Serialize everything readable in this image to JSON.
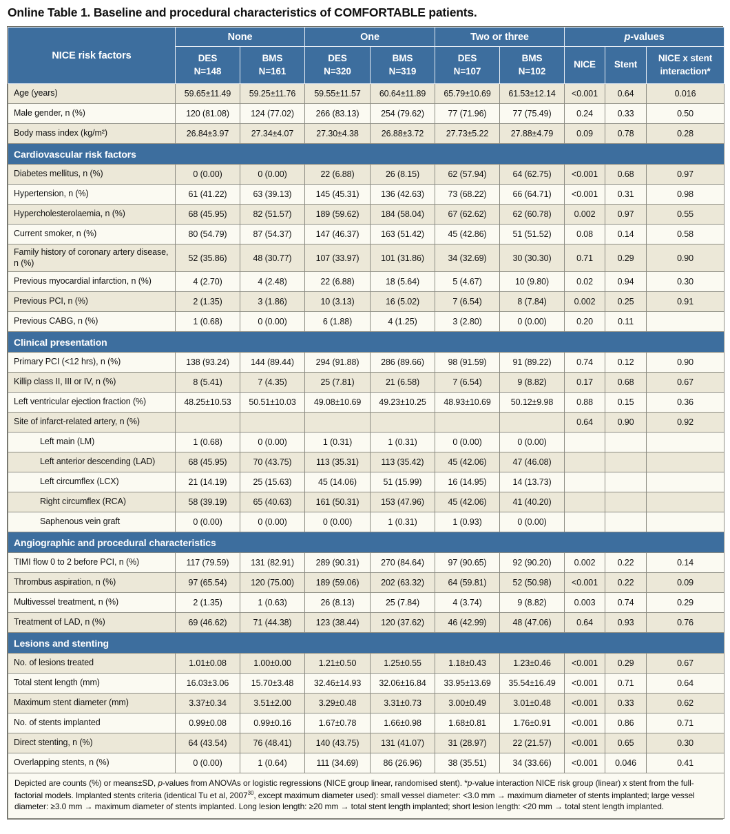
{
  "title": "Online Table 1. Baseline and procedural characteristics of COMFORTABLE patients.",
  "colors": {
    "header_blue": "#3d6e9e",
    "row_beige": "#ece8d8",
    "row_white": "#fbfaf2",
    "border_gray": "#8b8b82"
  },
  "table": {
    "corner_label": "NICE risk factors",
    "groups": [
      {
        "label": "None"
      },
      {
        "label": "One"
      },
      {
        "label": "Two or three"
      },
      {
        "label_italic": "p",
        "label_rest": "-values"
      }
    ],
    "columns": [
      {
        "name": "DES",
        "n": "N=148"
      },
      {
        "name": "BMS",
        "n": "N=161"
      },
      {
        "name": "DES",
        "n": "N=320"
      },
      {
        "name": "BMS",
        "n": "N=319"
      },
      {
        "name": "DES",
        "n": "N=107"
      },
      {
        "name": "BMS",
        "n": "N=102"
      }
    ],
    "p_columns": [
      "NICE",
      "Stent",
      "NICE x stent interaction*"
    ],
    "rows": [
      {
        "type": "data",
        "label": "Age (years)",
        "indent": false,
        "values": [
          "59.65±11.49",
          "59.25±11.76",
          "59.55±11.57",
          "60.64±11.89",
          "65.79±10.69",
          "61.53±12.14",
          "<0.001",
          "0.64",
          "0.016"
        ]
      },
      {
        "type": "data",
        "label": "Male gender, n (%)",
        "indent": false,
        "values": [
          "120 (81.08)",
          "124 (77.02)",
          "266 (83.13)",
          "254 (79.62)",
          "77 (71.96)",
          "77 (75.49)",
          "0.24",
          "0.33",
          "0.50"
        ]
      },
      {
        "type": "data",
        "label": "Body mass index (kg/m²)",
        "indent": false,
        "values": [
          "26.84±3.97",
          "27.34±4.07",
          "27.30±4.38",
          "26.88±3.72",
          "27.73±5.22",
          "27.88±4.79",
          "0.09",
          "0.78",
          "0.28"
        ]
      },
      {
        "type": "section",
        "label": "Cardiovascular risk factors"
      },
      {
        "type": "data",
        "label": "Diabetes mellitus, n (%)",
        "indent": false,
        "values": [
          "0 (0.00)",
          "0 (0.00)",
          "22 (6.88)",
          "26 (8.15)",
          "62 (57.94)",
          "64 (62.75)",
          "<0.001",
          "0.68",
          "0.97"
        ]
      },
      {
        "type": "data",
        "label": "Hypertension, n (%)",
        "indent": false,
        "values": [
          "61 (41.22)",
          "63 (39.13)",
          "145 (45.31)",
          "136 (42.63)",
          "73 (68.22)",
          "66 (64.71)",
          "<0.001",
          "0.31",
          "0.98"
        ]
      },
      {
        "type": "data",
        "label": "Hypercholesterolaemia, n (%)",
        "indent": false,
        "values": [
          "68 (45.95)",
          "82 (51.57)",
          "189 (59.62)",
          "184 (58.04)",
          "67 (62.62)",
          "62 (60.78)",
          "0.002",
          "0.97",
          "0.55"
        ]
      },
      {
        "type": "data",
        "label": "Current smoker, n (%)",
        "indent": false,
        "values": [
          "80 (54.79)",
          "87 (54.37)",
          "147 (46.37)",
          "163 (51.42)",
          "45 (42.86)",
          "51 (51.52)",
          "0.08",
          "0.14",
          "0.58"
        ]
      },
      {
        "type": "data",
        "label": "Family history of coronary artery disease, n (%)",
        "indent": false,
        "values": [
          "52 (35.86)",
          "48 (30.77)",
          "107 (33.97)",
          "101 (31.86)",
          "34 (32.69)",
          "30 (30.30)",
          "0.71",
          "0.29",
          "0.90"
        ]
      },
      {
        "type": "data",
        "label": "Previous myocardial infarction, n (%)",
        "indent": false,
        "values": [
          "4 (2.70)",
          "4 (2.48)",
          "22 (6.88)",
          "18 (5.64)",
          "5 (4.67)",
          "10 (9.80)",
          "0.02",
          "0.94",
          "0.30"
        ]
      },
      {
        "type": "data",
        "label": "Previous PCI, n (%)",
        "indent": false,
        "values": [
          "2 (1.35)",
          "3 (1.86)",
          "10 (3.13)",
          "16 (5.02)",
          "7 (6.54)",
          "8 (7.84)",
          "0.002",
          "0.25",
          "0.91"
        ]
      },
      {
        "type": "data",
        "label": "Previous CABG, n (%)",
        "indent": false,
        "values": [
          "1 (0.68)",
          "0 (0.00)",
          "6 (1.88)",
          "4 (1.25)",
          "3 (2.80)",
          "0 (0.00)",
          "0.20",
          "0.11",
          ""
        ]
      },
      {
        "type": "section",
        "label": "Clinical presentation"
      },
      {
        "type": "data",
        "label": "Primary PCI (<12 hrs), n (%)",
        "indent": false,
        "values": [
          "138 (93.24)",
          "144 (89.44)",
          "294 (91.88)",
          "286 (89.66)",
          "98 (91.59)",
          "91 (89.22)",
          "0.74",
          "0.12",
          "0.90"
        ]
      },
      {
        "type": "data",
        "label": "Killip class II, III or IV, n (%)",
        "indent": false,
        "values": [
          "8 (5.41)",
          "7 (4.35)",
          "25 (7.81)",
          "21 (6.58)",
          "7 (6.54)",
          "9 (8.82)",
          "0.17",
          "0.68",
          "0.67"
        ]
      },
      {
        "type": "data",
        "label": "Left ventricular ejection fraction (%)",
        "indent": false,
        "values": [
          "48.25±10.53",
          "50.51±10.03",
          "49.08±10.69",
          "49.23±10.25",
          "48.93±10.69",
          "50.12±9.98",
          "0.88",
          "0.15",
          "0.36"
        ]
      },
      {
        "type": "data",
        "label": "Site of infarct-related artery, n (%)",
        "indent": false,
        "values": [
          "",
          "",
          "",
          "",
          "",
          "",
          "0.64",
          "0.90",
          "0.92"
        ]
      },
      {
        "type": "data",
        "label": "Left main (LM)",
        "indent": true,
        "values": [
          "1 (0.68)",
          "0 (0.00)",
          "1 (0.31)",
          "1 (0.31)",
          "0 (0.00)",
          "0 (0.00)",
          "",
          "",
          ""
        ]
      },
      {
        "type": "data",
        "label": "Left anterior descending (LAD)",
        "indent": true,
        "values": [
          "68 (45.95)",
          "70 (43.75)",
          "113 (35.31)",
          "113 (35.42)",
          "45 (42.06)",
          "47 (46.08)",
          "",
          "",
          ""
        ]
      },
      {
        "type": "data",
        "label": "Left circumflex (LCX)",
        "indent": true,
        "values": [
          "21 (14.19)",
          "25 (15.63)",
          "45 (14.06)",
          "51 (15.99)",
          "16 (14.95)",
          "14 (13.73)",
          "",
          "",
          ""
        ]
      },
      {
        "type": "data",
        "label": "Right circumflex (RCA)",
        "indent": true,
        "values": [
          "58 (39.19)",
          "65 (40.63)",
          "161 (50.31)",
          "153 (47.96)",
          "45 (42.06)",
          "41 (40.20)",
          "",
          "",
          ""
        ]
      },
      {
        "type": "data",
        "label": "Saphenous vein graft",
        "indent": true,
        "values": [
          "0 (0.00)",
          "0 (0.00)",
          "0 (0.00)",
          "1 (0.31)",
          "1 (0.93)",
          "0 (0.00)",
          "",
          "",
          ""
        ]
      },
      {
        "type": "section",
        "label": "Angiographic and procedural characteristics"
      },
      {
        "type": "data",
        "label": "TIMI flow 0 to 2 before PCI, n (%)",
        "indent": false,
        "values": [
          "117 (79.59)",
          "131 (82.91)",
          "289 (90.31)",
          "270 (84.64)",
          "97 (90.65)",
          "92 (90.20)",
          "0.002",
          "0.22",
          "0.14"
        ]
      },
      {
        "type": "data",
        "label": "Thrombus aspiration, n (%)",
        "indent": false,
        "values": [
          "97 (65.54)",
          "120 (75.00)",
          "189 (59.06)",
          "202 (63.32)",
          "64 (59.81)",
          "52 (50.98)",
          "<0.001",
          "0.22",
          "0.09"
        ]
      },
      {
        "type": "data",
        "label": "Multivessel treatment, n (%)",
        "indent": false,
        "values": [
          "2 (1.35)",
          "1 (0.63)",
          "26 (8.13)",
          "25 (7.84)",
          "4 (3.74)",
          "9 (8.82)",
          "0.003",
          "0.74",
          "0.29"
        ]
      },
      {
        "type": "data",
        "label": "Treatment of LAD, n (%)",
        "indent": false,
        "values": [
          "69 (46.62)",
          "71 (44.38)",
          "123 (38.44)",
          "120 (37.62)",
          "46 (42.99)",
          "48 (47.06)",
          "0.64",
          "0.93",
          "0.76"
        ]
      },
      {
        "type": "section",
        "label": "Lesions and stenting"
      },
      {
        "type": "data",
        "label": "No. of lesions treated",
        "indent": false,
        "values": [
          "1.01±0.08",
          "1.00±0.00",
          "1.21±0.50",
          "1.25±0.55",
          "1.18±0.43",
          "1.23±0.46",
          "<0.001",
          "0.29",
          "0.67"
        ]
      },
      {
        "type": "data",
        "label": "Total stent length (mm)",
        "indent": false,
        "values": [
          "16.03±3.06",
          "15.70±3.48",
          "32.46±14.93",
          "32.06±16.84",
          "33.95±13.69",
          "35.54±16.49",
          "<0.001",
          "0.71",
          "0.64"
        ]
      },
      {
        "type": "data",
        "label": "Maximum stent diameter (mm)",
        "indent": false,
        "values": [
          "3.37±0.34",
          "3.51±2.00",
          "3.29±0.48",
          "3.31±0.73",
          "3.00±0.49",
          "3.01±0.48",
          "<0.001",
          "0.33",
          "0.62"
        ]
      },
      {
        "type": "data",
        "label": "No. of stents implanted",
        "indent": false,
        "values": [
          "0.99±0.08",
          "0.99±0.16",
          "1.67±0.78",
          "1.66±0.98",
          "1.68±0.81",
          "1.76±0.91",
          "<0.001",
          "0.86",
          "0.71"
        ]
      },
      {
        "type": "data",
        "label": "Direct stenting, n (%)",
        "indent": false,
        "values": [
          "64 (43.54)",
          "76 (48.41)",
          "140 (43.75)",
          "131 (41.07)",
          "31 (28.97)",
          "22 (21.57)",
          "<0.001",
          "0.65",
          "0.30"
        ]
      },
      {
        "type": "data",
        "label": "Overlapping stents, n (%)",
        "indent": false,
        "values": [
          "0 (0.00)",
          "1 (0.64)",
          "111 (34.69)",
          "86 (26.96)",
          "38 (35.51)",
          "34 (33.66)",
          "<0.001",
          "0.046",
          "0.41"
        ]
      }
    ],
    "footnote_segments": [
      {
        "t": "Depicted are counts (%) or means±SD, "
      },
      {
        "t": "p",
        "i": true
      },
      {
        "t": "-values from ANOVAs or logistic regressions (NICE group linear, randomised stent). *"
      },
      {
        "t": "p",
        "i": true
      },
      {
        "t": "-value interaction NICE risk group (linear) x stent from the full-factorial models. Implanted stents criteria (identical Tu et al, 2007"
      },
      {
        "t": "30",
        "sup": true
      },
      {
        "t": ", except maximum diameter used): small vessel diameter: <3.0 mm → maximum diameter of stents implanted; large vessel diameter: ≥3.0 mm → maximum diameter of stents implanted. Long lesion length: ≥20 mm → total stent length implanted; short lesion length: <20 mm → total stent length implanted."
      }
    ]
  }
}
